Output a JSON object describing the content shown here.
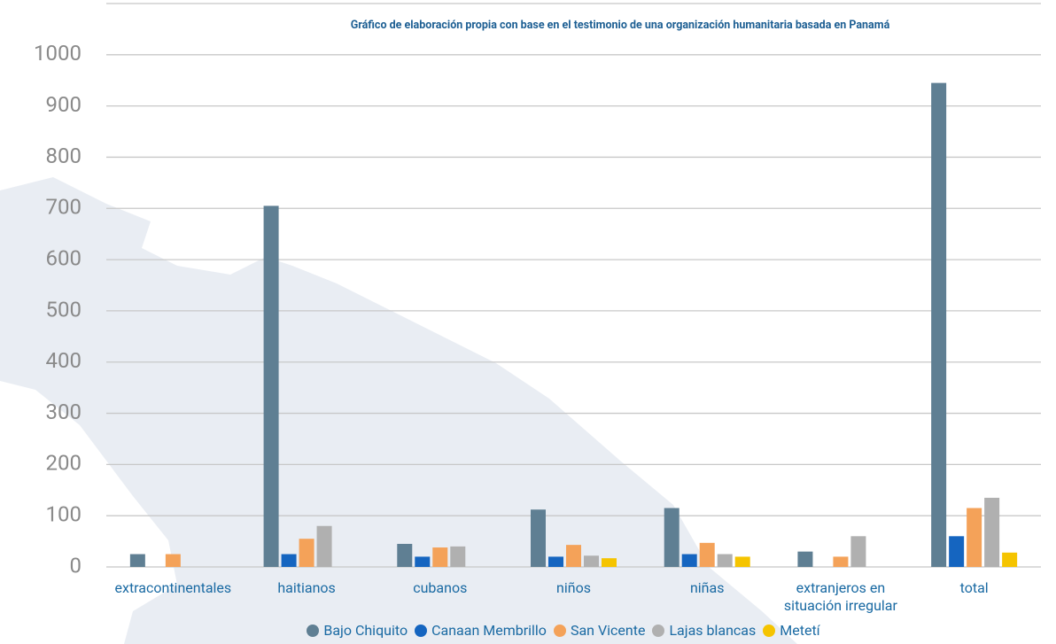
{
  "chart_data": {
    "type": "bar",
    "title": "Gráfico de elaboración propia  con base en el testimonio de una organización humanitaria basada en Panamá",
    "categories": [
      "extracontinentales",
      "haitianos",
      "cubanos",
      "niños",
      "niñas",
      "extranjeros en situación irregular",
      "total"
    ],
    "series": [
      {
        "name": "Bajo Chiquito",
        "color": "#5f7f93",
        "values": [
          25,
          705,
          45,
          112,
          115,
          30,
          945
        ]
      },
      {
        "name": "Canaan Membrillo",
        "color": "#1565c0",
        "values": [
          null,
          25,
          20,
          20,
          25,
          null,
          60
        ]
      },
      {
        "name": "San Vicente",
        "color": "#f4a259",
        "values": [
          25,
          55,
          38,
          43,
          47,
          20,
          115
        ]
      },
      {
        "name": "Lajas blancas",
        "color": "#b0b0b0",
        "values": [
          null,
          80,
          40,
          22,
          25,
          60,
          135
        ]
      },
      {
        "name": "Metetí",
        "color": "#f5c400",
        "values": [
          null,
          null,
          null,
          17,
          20,
          null,
          28
        ]
      }
    ],
    "ylim": [
      0,
      1100
    ],
    "yticks": [
      0,
      100,
      200,
      300,
      400,
      500,
      600,
      700,
      800,
      900,
      1000
    ],
    "grid": true
  }
}
